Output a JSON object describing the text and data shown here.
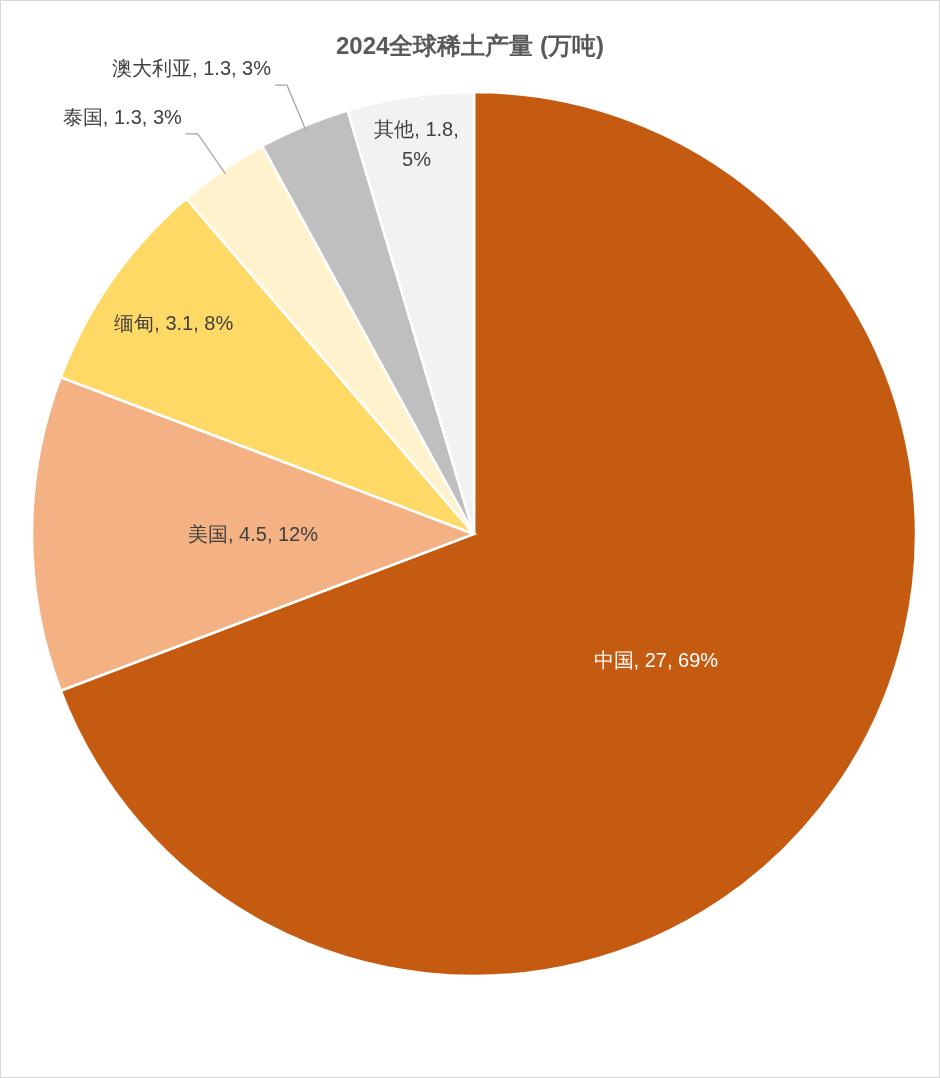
{
  "chart_data": {
    "type": "pie",
    "title": "2024全球稀土产量 (万吨)",
    "categories": [
      "中国",
      "美国",
      "缅甸",
      "泰国",
      "澳大利亚",
      "其他"
    ],
    "values": [
      27,
      4.5,
      3.1,
      1.3,
      1.3,
      1.8
    ],
    "value_labels": [
      "27, 69%",
      "4.5, 12%",
      "3.1, 8%",
      "1.3, 3%",
      "1.3, 3%",
      "1.8, 5%"
    ],
    "colors": [
      "#c55a11",
      "#f4b183",
      "#ffd966",
      "#fff2cc",
      "#bfbfbf",
      "#f2f2f2"
    ]
  }
}
